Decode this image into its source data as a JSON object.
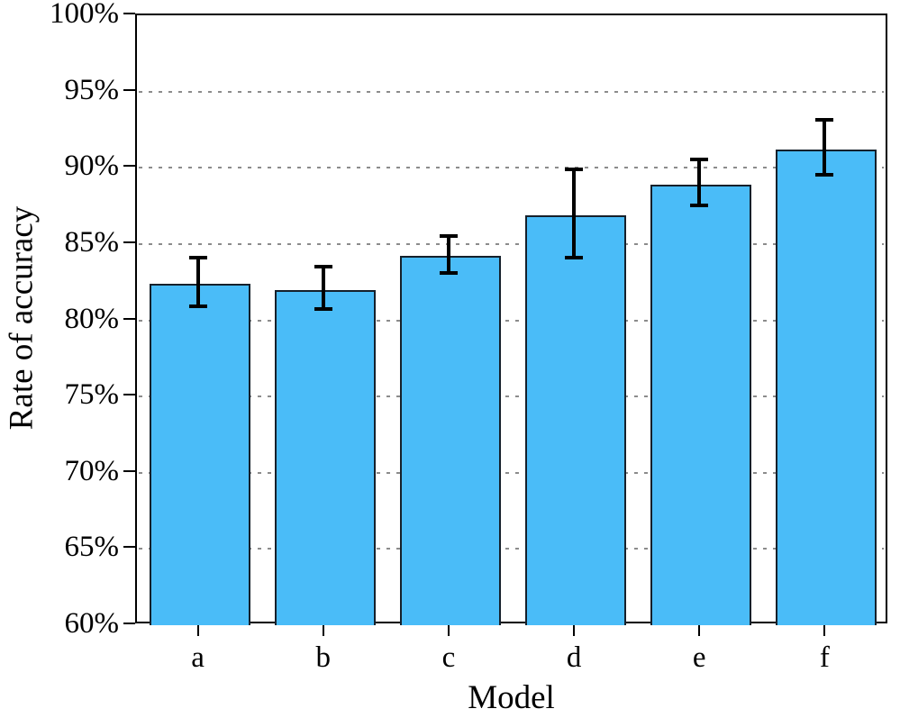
{
  "chart_data": {
    "type": "bar",
    "title": "",
    "xlabel": "Model",
    "ylabel": "Rate of accuracy",
    "categories": [
      "a",
      "b",
      "c",
      "d",
      "e",
      "f"
    ],
    "values": [
      82.4,
      82.0,
      84.2,
      86.9,
      88.9,
      91.2
    ],
    "error_bars": [
      1.6,
      1.4,
      1.2,
      2.9,
      1.5,
      1.8
    ],
    "ylim": [
      60,
      100
    ],
    "ytick_step": 5,
    "ytick_labels": [
      "60%",
      "65%",
      "70%",
      "75%",
      "80%",
      "85%",
      "90%",
      "95%",
      "100%"
    ],
    "grid": "horizontal-dotted",
    "legend_position": "none",
    "colors": {
      "bar_fill": "#4ABCF8",
      "bar_border": "#15202b",
      "error_bar": "#000000",
      "grid_line": "#8c8c8c",
      "axis": "#000000",
      "text": "#000000",
      "background": "#ffffff"
    }
  }
}
